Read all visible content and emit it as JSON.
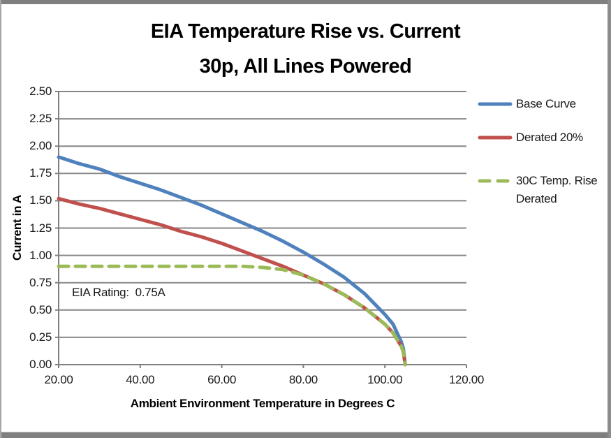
{
  "page": {
    "background": "#FFFFFF",
    "frame_border_color": "#7F7F7F"
  },
  "chart_data": {
    "type": "line",
    "title": "EIA Temperature Rise vs. Current",
    "subtitle": "30p, All Lines Powered",
    "xlabel": "Ambient Environment Temperature in Degrees C",
    "ylabel": "Current in A",
    "annotation": {
      "text": "EIA Rating:  0.75A",
      "x": 24,
      "y": 0.62
    },
    "xlim": [
      20,
      120
    ],
    "ylim": [
      0,
      2.5
    ],
    "grid": "horizontal-only",
    "grid_color": "#878787",
    "axis_color": "#808080",
    "legend_position": "right",
    "x_tick_values": [
      20,
      40,
      60,
      80,
      100,
      120
    ],
    "x_tick_labels": [
      "20.00",
      "40.00",
      "60.00",
      "80.00",
      "100.00",
      "120.00"
    ],
    "y_tick_values": [
      0,
      0.25,
      0.5,
      0.75,
      1.0,
      1.25,
      1.5,
      1.75,
      2.0,
      2.25,
      2.5
    ],
    "y_tick_labels": [
      "0.00",
      "0.25",
      "0.50",
      "0.75",
      "1.00",
      "1.25",
      "1.50",
      "1.75",
      "2.00",
      "2.25",
      "2.50"
    ],
    "series": [
      {
        "name": "Base Curve",
        "color": "#4F81BD",
        "line_style": "solid",
        "x": [
          20,
          25,
          30,
          35,
          40,
          45,
          50,
          55,
          60,
          65,
          70,
          75,
          80,
          85,
          90,
          95,
          100,
          102,
          103,
          104,
          104.5,
          105
        ],
        "y": [
          1.9,
          1.84,
          1.79,
          1.72,
          1.66,
          1.6,
          1.53,
          1.46,
          1.38,
          1.3,
          1.22,
          1.13,
          1.03,
          0.92,
          0.8,
          0.65,
          0.46,
          0.37,
          0.29,
          0.21,
          0.15,
          0.0
        ]
      },
      {
        "name": "Derated 20%",
        "color": "#C0504D",
        "line_style": "solid",
        "x": [
          20,
          25,
          30,
          35,
          40,
          45,
          50,
          55,
          60,
          65,
          70,
          75,
          80,
          85,
          90,
          95,
          100,
          102,
          103,
          104,
          104.5,
          105
        ],
        "y": [
          1.52,
          1.47,
          1.43,
          1.38,
          1.33,
          1.28,
          1.22,
          1.17,
          1.11,
          1.04,
          0.97,
          0.9,
          0.82,
          0.74,
          0.64,
          0.52,
          0.37,
          0.29,
          0.23,
          0.17,
          0.12,
          0.0
        ]
      },
      {
        "name": "30C Temp. Rise Derated",
        "color": "#9BBB59",
        "line_style": "dashed",
        "x": [
          20,
          25,
          30,
          35,
          40,
          45,
          50,
          55,
          60,
          65,
          70,
          75,
          80,
          85,
          90,
          95,
          100,
          102,
          103,
          104,
          104.5,
          105
        ],
        "y": [
          0.9,
          0.9,
          0.9,
          0.9,
          0.9,
          0.9,
          0.9,
          0.9,
          0.9,
          0.9,
          0.89,
          0.87,
          0.82,
          0.74,
          0.64,
          0.52,
          0.37,
          0.29,
          0.23,
          0.17,
          0.12,
          0.0
        ]
      }
    ]
  }
}
